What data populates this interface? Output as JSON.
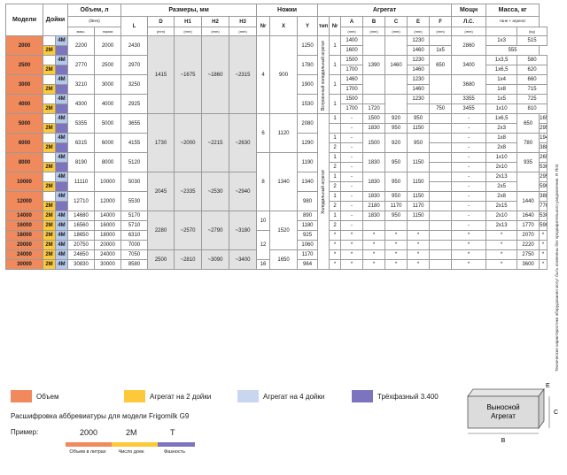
{
  "header": {
    "models": "Модели",
    "legs": "Дойки",
    "volume": "Объем, л",
    "volume_sub": [
      "(litres)"
    ],
    "max": "макс.",
    "norm": "норма",
    "dims": "Размеры, мм",
    "L": "L",
    "D": "D",
    "H1": "H1",
    "H2": "H2",
    "H3": "H3",
    "mm": "(mm)",
    "feet": "Ножки",
    "Nr": "Nr",
    "X": "X",
    "Y": "Y",
    "unit": "Агрегат",
    "type": "тип",
    "A": "A",
    "B": "B",
    "C": "C",
    "E": "E",
    "F": "F",
    "power": "Мощн",
    "power2": "Л.С.",
    "mass": "Масса, кг",
    "mass_sub": "тане + агрегат",
    "kg": "(kg)"
  },
  "rows": [
    {
      "model": "2000",
      "max": "2200",
      "norm": "2000",
      "L": "2430",
      "feetY": "1250",
      "sub": [
        {
          "nr": "1",
          "A": "1400",
          "B": "",
          "C": "",
          "E": "1230",
          "F": "",
          "power": "1x3",
          "mass": "515"
        },
        {
          "nr": "",
          "A": "1600",
          "B": "",
          "C": "",
          "E": "1460",
          "F": "",
          "power": "1x5",
          "mass": "555"
        }
      ]
    },
    {
      "model": "2500",
      "max": "2770",
      "norm": "2500",
      "L": "2970",
      "feetY": "1780",
      "sub": [
        {
          "nr": "1",
          "A": "1500",
          "B": "",
          "C": "",
          "E": "1230",
          "F": "",
          "power": "1x3,5",
          "mass": "580"
        },
        {
          "nr": "",
          "A": "1700",
          "B": "",
          "C": "",
          "E": "1460",
          "F": "",
          "power": "1x6,5",
          "mass": "620"
        }
      ]
    },
    {
      "model": "3000",
      "max": "3210",
      "norm": "3000",
      "L": "3250",
      "feetY": "1900",
      "sub": [
        {
          "nr": "1",
          "A": "1460",
          "B": "",
          "C": "",
          "E": "1230",
          "F": "",
          "power": "1x4",
          "mass": "660"
        },
        {
          "nr": "",
          "A": "1700",
          "B": "",
          "C": "",
          "E": "1460",
          "F": "",
          "power": "1x8",
          "mass": "715"
        }
      ]
    },
    {
      "model": "4000",
      "max": "4300",
      "norm": "4000",
      "L": "2925",
      "feetY": "1530",
      "sub": [
        {
          "nr": "1",
          "A": "1500",
          "B": "",
          "C": "",
          "E": "1230",
          "F": "3355",
          "power": "1x5",
          "mass": "725"
        },
        {
          "nr": "",
          "A": "1700",
          "B": "1720",
          "C": "",
          "E": "750",
          "F": "3455",
          "power": "1x10",
          "mass": "810"
        }
      ]
    },
    {
      "model": "5000",
      "max": "5355",
      "norm": "5000",
      "L": "3655",
      "feetY": "2080",
      "sub": [
        {
          "nr": "1",
          "A": "-",
          "B": "1500",
          "C": "920",
          "E": "950",
          "F": "-",
          "power": "1x6,5",
          "mass1": "650",
          "mass2": "165"
        },
        {
          "nr": "",
          "A": "-",
          "B": "1830",
          "C": "950",
          "E": "1150",
          "F": "-",
          "power": "2x3",
          "mass1": "",
          "mass2": "295"
        }
      ]
    },
    {
      "model": "6000",
      "max": "6315",
      "norm": "6000",
      "L": "4155",
      "feetY": "1290",
      "sub": [
        {
          "nr": "1",
          "A": "-",
          "B": "1500",
          "C": "920",
          "E": "950",
          "F": "-",
          "power": "1x8",
          "mass1": "780",
          "mass2": "194"
        },
        {
          "nr": "2",
          "A": "-",
          "B": "",
          "C": "",
          "E": "",
          "F": "-",
          "power": "2x8",
          "mass1": "",
          "mass2": "388"
        }
      ]
    },
    {
      "model": "8000",
      "max": "8190",
      "norm": "8000",
      "L": "5120",
      "feetY": "1190",
      "sub": [
        {
          "nr": "1",
          "A": "-",
          "B": "1830",
          "C": "950",
          "E": "1150",
          "F": "-",
          "power": "1x10",
          "mass1": "935",
          "mass2": "265"
        },
        {
          "nr": "2",
          "A": "-",
          "B": "",
          "C": "",
          "E": "",
          "F": "-",
          "power": "2x10",
          "mass1": "",
          "mass2": "530"
        }
      ]
    },
    {
      "model": "10000",
      "max": "11110",
      "norm": "10000",
      "L": "5030",
      "feetY": "1340",
      "sub": [
        {
          "nr": "1",
          "A": "-",
          "B": "1830",
          "C": "950",
          "E": "1150",
          "F": "-",
          "power": "2x13",
          "mass1": "",
          "mass2": "295"
        },
        {
          "nr": "2",
          "A": "-",
          "B": "",
          "C": "",
          "E": "",
          "F": "-",
          "power": "2x5",
          "mass1": "",
          "mass2": "590"
        }
      ]
    },
    {
      "model": "12000",
      "max": "12710",
      "norm": "12000",
      "L": "5530",
      "feetY": "980",
      "sub": [
        {
          "nr": "1",
          "A": "-",
          "B": "1830",
          "C": "950",
          "E": "1150",
          "F": "-",
          "power": "2x8",
          "mass1": "1440",
          "mass2": "388"
        },
        {
          "nr": "2",
          "A": "-",
          "B": "2180",
          "C": "1170",
          "E": "1170",
          "F": "-",
          "power": "2x15",
          "mass1": "",
          "mass2": "776"
        }
      ]
    }
  ],
  "rows_small": [
    {
      "model": "14000",
      "max": "14680",
      "norm": "14000",
      "L": "5170",
      "feetY": "890",
      "nr": "1",
      "A": "-",
      "B": "1830",
      "C": "950",
      "E": "1150",
      "F": "-",
      "power": "2x10",
      "mass1": "1640",
      "mass2": "530"
    },
    {
      "model": "16000",
      "max": "16560",
      "norm": "16000",
      "L": "5710",
      "feetY": "1180",
      "nr": "2",
      "A": "-",
      "B": "",
      "C": "",
      "E": "",
      "F": "-",
      "power": "2x13",
      "mass1": "1770",
      "mass2": "590"
    },
    {
      "model": "18000",
      "max": "18650",
      "norm": "18000",
      "L": "6310",
      "feetY": "925",
      "nr": "*",
      "A": "*",
      "B": "*",
      "C": "*",
      "E": "*",
      "F": "*",
      "power": "*",
      "mass1": "2070",
      "mass2": "*"
    },
    {
      "model": "20000",
      "max": "20750",
      "norm": "20000",
      "L": "7000",
      "feetY": "1060",
      "nr": "*",
      "A": "*",
      "B": "*",
      "C": "*",
      "E": "*",
      "F": "*",
      "power": "*",
      "mass1": "2220",
      "mass2": "*"
    },
    {
      "model": "24000",
      "max": "24650",
      "norm": "24000",
      "L": "7050",
      "feetY": "1170",
      "nr": "*",
      "A": "*",
      "B": "*",
      "C": "*",
      "E": "*",
      "F": "*",
      "power": "*",
      "mass1": "2750",
      "mass2": "*"
    },
    {
      "model": "30000",
      "max": "30830",
      "norm": "30000",
      "L": "8580",
      "feetY": "964",
      "nr": "*",
      "A": "*",
      "B": "*",
      "C": "*",
      "E": "*",
      "F": "*",
      "power": "*",
      "mass1": "3600",
      "mass2": "*"
    }
  ],
  "groups": {
    "g1": {
      "D": "1415",
      "H1": "~1675",
      "H2": "~1860",
      "H3": "~2315",
      "feetNr": "4",
      "feetX": "900"
    },
    "g2": {
      "D": "1730",
      "H1": "~2000",
      "H2": "~2215",
      "H3": "~2630",
      "feetNr": "6",
      "feetX": "1120"
    },
    "g3": {
      "D": "2045",
      "H1": "~2335",
      "H2": "~2530",
      "H3": "~2940",
      "feetNr": "8",
      "feetX": "1340"
    },
    "g4": {
      "D": "2280",
      "H1": "~2570",
      "H2": "~2790",
      "H3": "~3180",
      "feetNr": "10",
      "feetX": "1520"
    },
    "g5": {
      "D": "2500",
      "H1": "~2810",
      "H2": "~3090",
      "H3": "~3400",
      "feetNr": "12",
      "feetX": "1650"
    },
    "feetNr16": "16",
    "unitB_2500": "1390",
    "unitC_2500": "1460",
    "unitE_2500": "650",
    "unitF_2000": "2860",
    "unitF_2500": "3400",
    "unitF_3000": "3680"
  },
  "legs_labels": {
    "2m": "2M",
    "4m": "4M"
  },
  "vert_labels": {
    "builtin": "Встроенный холодильный агрегат",
    "remote": "Холодильный агрегат"
  },
  "side_note": "Технические характеристики оборудования могут быть изменены без предварительного уведомления. R Tkt4",
  "legend": [
    {
      "label": "Объем",
      "color": "#f08a5d"
    },
    {
      "label": "Агрегат на 2 дойки",
      "color": "#fcc93b"
    },
    {
      "label": "Агрегат на 4 дойки",
      "color": "#c9d6ef"
    },
    {
      "label": "Трёхфазный 3.400",
      "color": "#7d74bf"
    }
  ],
  "decode": {
    "title": "Расшифровка аббревиатуры для модели Frigomilk G9",
    "example_label": "Пример:",
    "ex1": "2000",
    "ex2": "2M",
    "ex3": "T",
    "bar1": "Объем в литрах",
    "bar2": "Число доек",
    "bar3": "Фазность"
  },
  "box": {
    "label1": "Выносной",
    "label2": "Агрегат",
    "A": "E",
    "B": "B",
    "C": "C"
  }
}
